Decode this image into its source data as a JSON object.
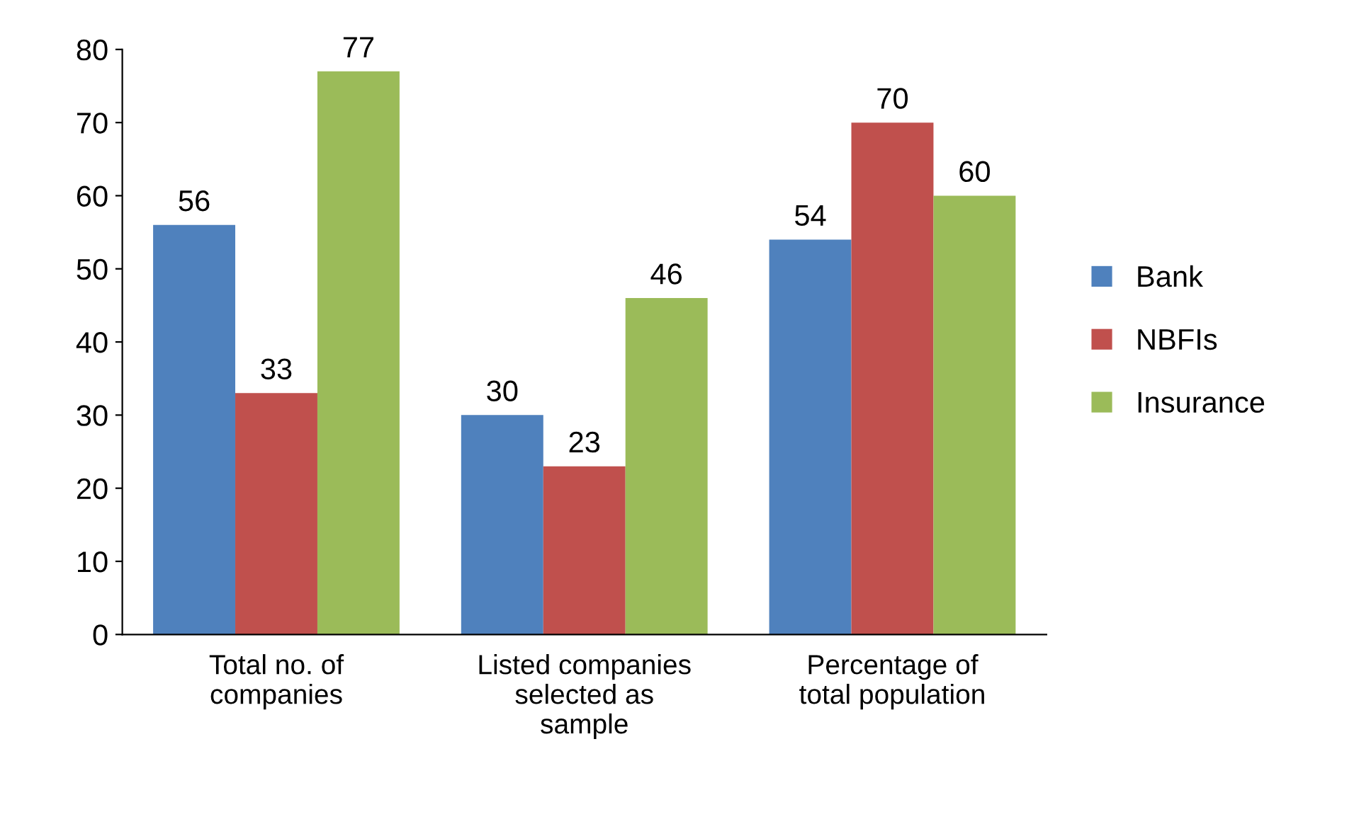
{
  "chart_data": {
    "type": "bar",
    "categories": [
      "Total no. of\ncompanies",
      "Listed companies\nselected as\nsample",
      "Percentage of\ntotal population"
    ],
    "series": [
      {
        "name": "Bank",
        "color": "#4f81bd",
        "values": [
          56,
          30,
          54
        ]
      },
      {
        "name": "NBFIs",
        "color": "#c0504d",
        "values": [
          33,
          23,
          70
        ]
      },
      {
        "name": "Insurance",
        "color": "#9bbb59",
        "values": [
          77,
          46,
          60
        ]
      }
    ],
    "ylim": [
      0,
      80
    ],
    "yticks": [
      0,
      10,
      20,
      30,
      40,
      50,
      60,
      70,
      80
    ],
    "grid": false,
    "legend": "right",
    "data_labels": true
  }
}
